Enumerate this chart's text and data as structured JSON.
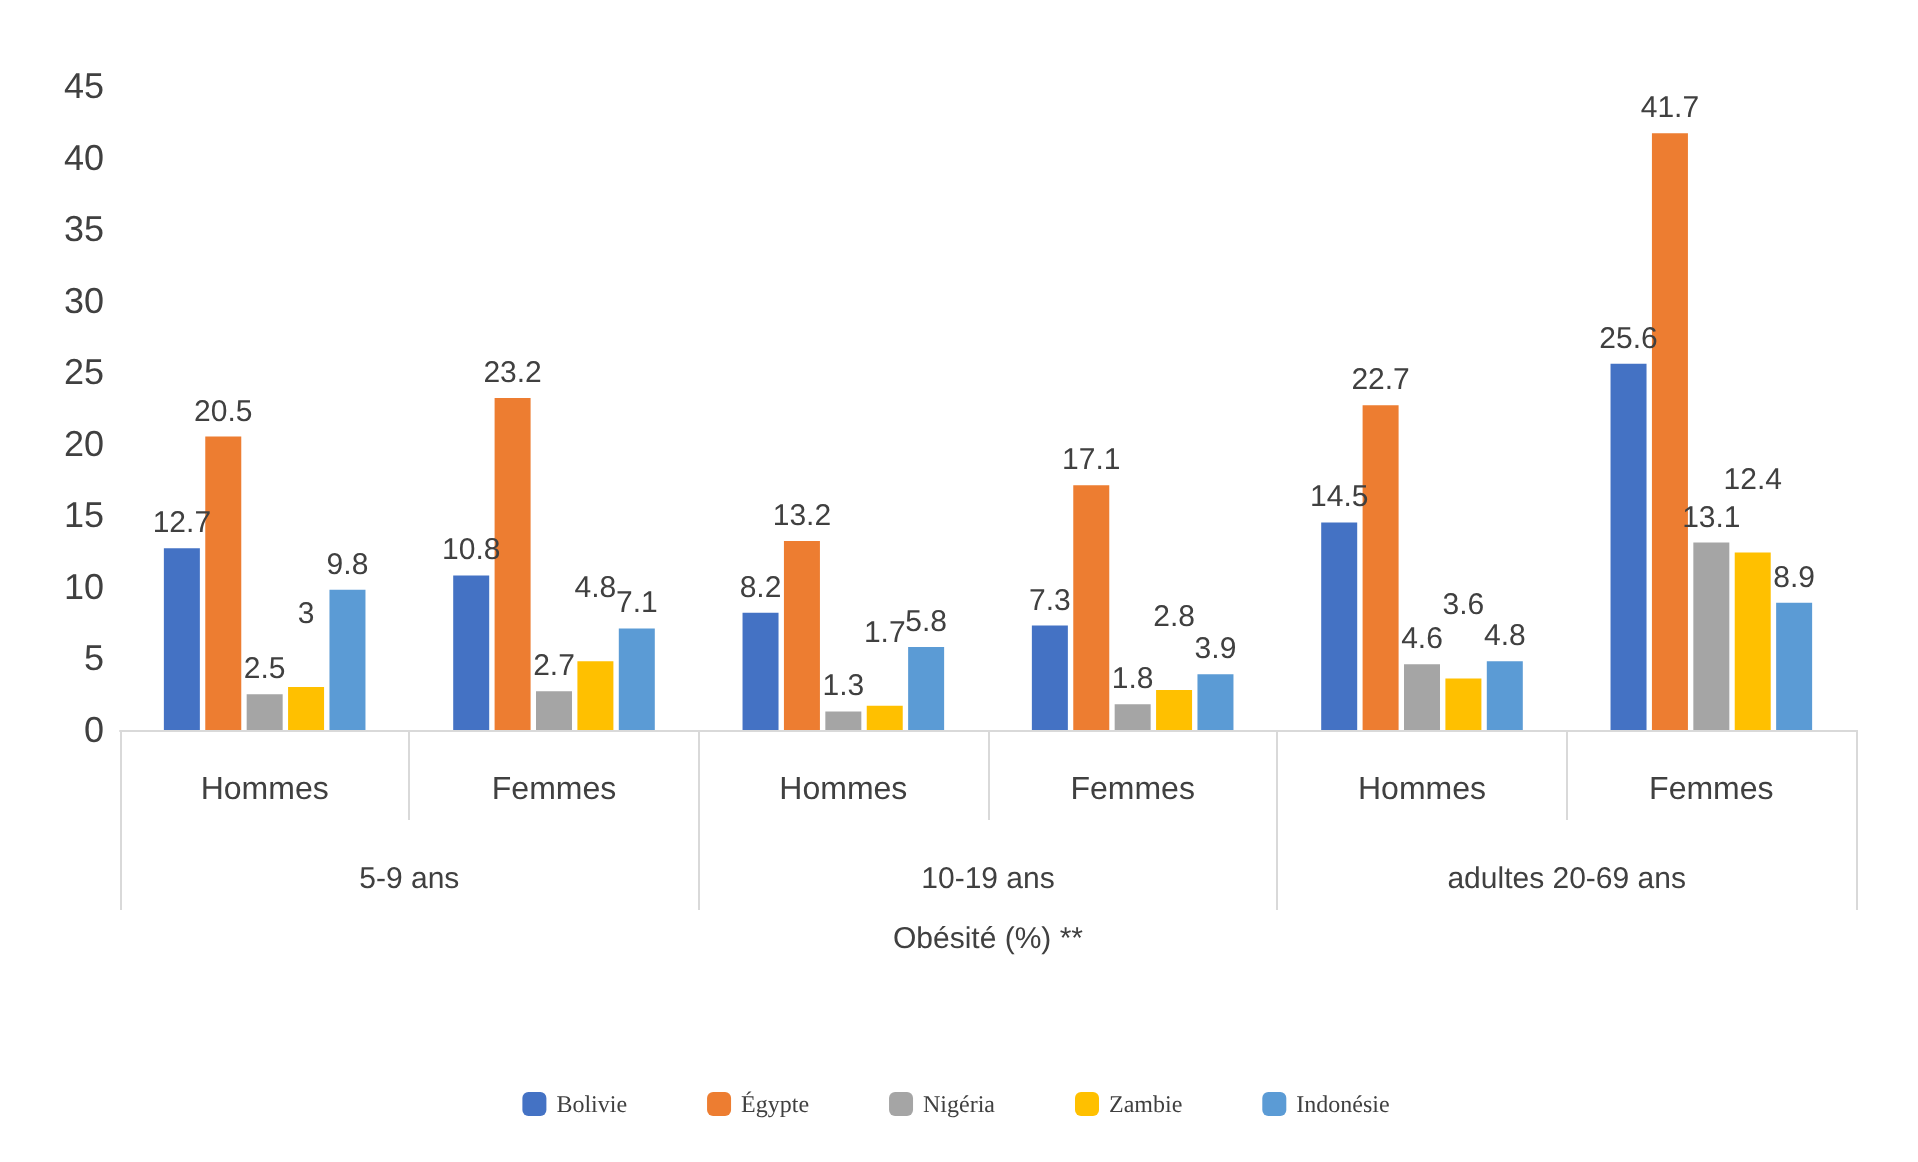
{
  "chart_data": {
    "type": "bar",
    "xlabel": "Obésité (%) **",
    "categories": [
      "Hommes",
      "Femmes",
      "Hommes",
      "Femmes",
      "Hommes",
      "Femmes"
    ],
    "annotations": [
      "5-9 ans",
      "10-19 ans",
      "adultes 20-69 ans"
    ],
    "series": [
      {
        "name": "Bolivie",
        "color": "#4472c4",
        "values": [
          12.7,
          10.8,
          8.2,
          7.3,
          14.5,
          25.6
        ]
      },
      {
        "name": "Égypte",
        "color": "#ed7d31",
        "values": [
          20.5,
          23.2,
          13.2,
          17.1,
          22.7,
          41.7
        ]
      },
      {
        "name": "Nigéria",
        "color": "#a5a5a5",
        "values": [
          2.5,
          2.7,
          1.3,
          1.8,
          4.6,
          13.1
        ]
      },
      {
        "name": "Zambie",
        "color": "#ffc000",
        "values": [
          3,
          4.8,
          1.7,
          2.8,
          3.6,
          12.4
        ]
      },
      {
        "name": "Indonésie",
        "color": "#5b9bd5",
        "values": [
          9.8,
          7.1,
          5.8,
          3.9,
          4.8,
          8.9
        ]
      }
    ],
    "ylim": [
      0,
      45
    ],
    "yticks": [
      0,
      5,
      10,
      15,
      20,
      25,
      30,
      35,
      40,
      45
    ],
    "grid": false,
    "legend": "bottom",
    "data_labels": true
  }
}
